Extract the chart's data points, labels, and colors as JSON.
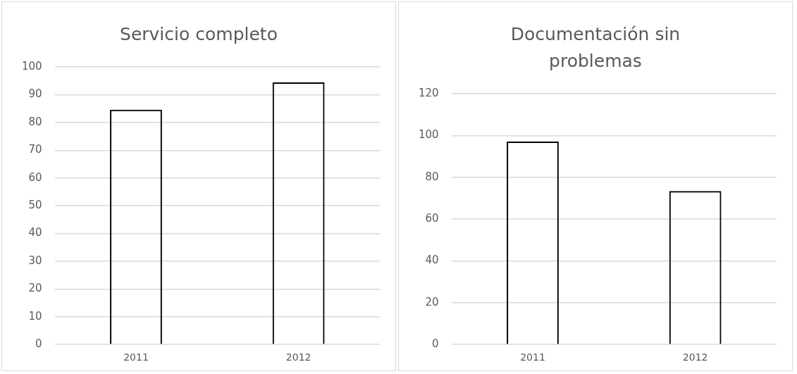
{
  "chart_data": [
    {
      "type": "bar",
      "title": "Servicio completo",
      "categories": [
        "2011",
        "2012"
      ],
      "values": [
        84.6,
        94.4
      ],
      "color": "#000000",
      "ylim": [
        0,
        100
      ],
      "yticks": [
        0,
        10,
        20,
        30,
        40,
        50,
        60,
        70,
        80,
        90,
        100
      ],
      "grid": "y",
      "legend": false
    },
    {
      "type": "bar",
      "title": "Documentación sin problemas",
      "categories": [
        "2011",
        "2012"
      ],
      "values": [
        97.1,
        73.4
      ],
      "color": "#000000",
      "ylim": [
        0,
        120
      ],
      "yticks": [
        0,
        20,
        40,
        60,
        80,
        100,
        120
      ],
      "grid": "y",
      "legend": false
    }
  ]
}
